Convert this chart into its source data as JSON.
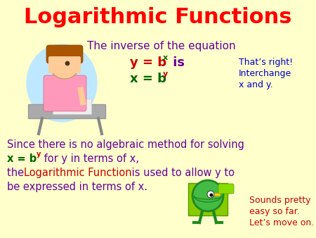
{
  "bg_color": "#FFFFCC",
  "title": "Logarithmic Functions",
  "title_color": "#FF0000",
  "title_fontsize": 22,
  "subtitle": "The inverse of the equation",
  "subtitle_color": "#660099",
  "subtitle_fontsize": 11,
  "eq1_color": "#CC0000",
  "eq1_super_color": "#006600",
  "eq2_color": "#006600",
  "eq2_super_color": "#CC0000",
  "eq_is_color": "#660099",
  "callout1_lines": [
    "That’s right!",
    "Interchange",
    "x and y."
  ],
  "callout1_color": "#0000CC",
  "callout1_fontsize": 9,
  "body_color": "#660099",
  "body_fontsize": 10.5,
  "highlight_color": "#CC0000",
  "green_color": "#006600",
  "sounds_lines": [
    "Sounds pretty",
    "easy so far.",
    "Let’s move on."
  ],
  "sounds_color": "#CC0000",
  "sounds_fontsize": 9
}
